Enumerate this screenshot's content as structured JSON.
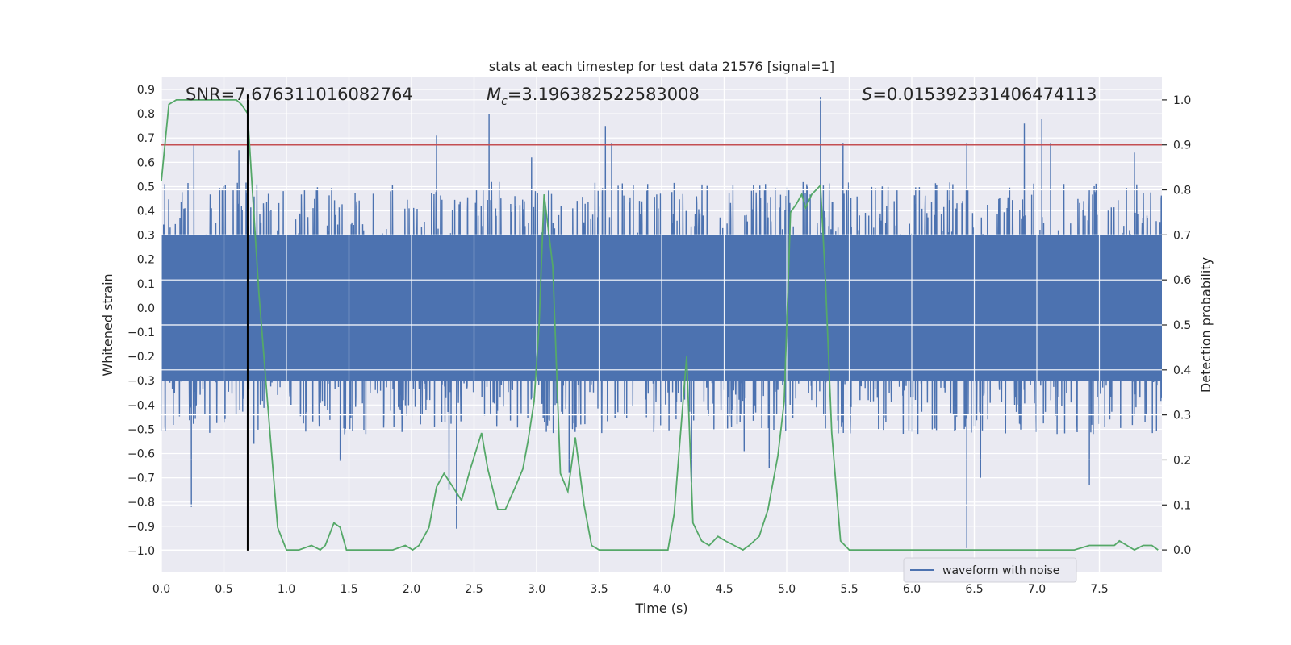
{
  "chart_data": {
    "type": "line",
    "title": "stats at each timestep for test data 21576 [signal=1]",
    "xlabel": "Time (s)",
    "ylabel": "Whitened strain",
    "y2label": "Detection probability",
    "xlim": [
      0.0,
      8.0
    ],
    "ylim": [
      -1.09,
      0.95
    ],
    "y2lim": [
      -0.05,
      1.05
    ],
    "xticks": [
      "0.0",
      "0.5",
      "1.0",
      "1.5",
      "2.0",
      "2.5",
      "3.0",
      "3.5",
      "4.0",
      "4.5",
      "5.0",
      "5.5",
      "6.0",
      "6.5",
      "7.0",
      "7.5"
    ],
    "yticks": [
      "−1.0",
      "−0.9",
      "−0.8",
      "−0.7",
      "−0.6",
      "−0.5",
      "−0.4",
      "−0.3",
      "−0.2",
      "−0.1",
      "0.0",
      "0.1",
      "0.2",
      "0.3",
      "0.4",
      "0.5",
      "0.6",
      "0.7",
      "0.8",
      "0.9"
    ],
    "y2ticks": [
      "0.0",
      "0.1",
      "0.2",
      "0.3",
      "0.4",
      "0.5",
      "0.6",
      "0.7",
      "0.8",
      "0.9",
      "1.0"
    ],
    "grid": true,
    "legend_position": "lower-right",
    "annotations": {
      "snr": "SNR=7.676311016082764",
      "mc_symbol": "M",
      "mc_sub": "c",
      "mc_value": "=3.196382522583008",
      "s_symbol": "S",
      "s_value": "=0.015392331406474113"
    },
    "series": [
      {
        "name": "waveform with noise",
        "color": "#4c72b0",
        "axis": "left",
        "kind": "noise",
        "points_per_second": 512,
        "envelope": 0.52,
        "core": 0.3,
        "spikes": [
          {
            "x": 0.24,
            "y": -0.82
          },
          {
            "x": 0.26,
            "y": 0.67
          },
          {
            "x": 0.62,
            "y": 0.65
          },
          {
            "x": 0.74,
            "y": -0.56
          },
          {
            "x": 1.43,
            "y": -0.63
          },
          {
            "x": 2.2,
            "y": 0.71
          },
          {
            "x": 2.3,
            "y": -0.75
          },
          {
            "x": 2.36,
            "y": -0.91
          },
          {
            "x": 2.62,
            "y": 0.8
          },
          {
            "x": 2.96,
            "y": 0.62
          },
          {
            "x": 3.26,
            "y": -0.68
          },
          {
            "x": 3.55,
            "y": 0.75
          },
          {
            "x": 3.6,
            "y": 0.68
          },
          {
            "x": 4.24,
            "y": -0.72
          },
          {
            "x": 4.66,
            "y": -0.59
          },
          {
            "x": 4.86,
            "y": -0.66
          },
          {
            "x": 5.27,
            "y": 0.87
          },
          {
            "x": 5.45,
            "y": 0.68
          },
          {
            "x": 6.44,
            "y": 0.68
          },
          {
            "x": 6.44,
            "y": -0.99
          },
          {
            "x": 6.55,
            "y": -0.7
          },
          {
            "x": 6.9,
            "y": 0.76
          },
          {
            "x": 7.04,
            "y": 0.78
          },
          {
            "x": 7.11,
            "y": 0.68
          },
          {
            "x": 7.42,
            "y": -0.73
          },
          {
            "x": 7.78,
            "y": 0.64
          }
        ]
      },
      {
        "name": "",
        "color": "#55a868",
        "axis": "right",
        "kind": "line",
        "x": [
          0.0,
          0.06,
          0.12,
          0.2,
          0.3,
          0.4,
          0.5,
          0.6,
          0.64,
          0.69,
          0.73,
          0.78,
          0.86,
          0.93,
          1.0,
          1.1,
          1.2,
          1.27,
          1.31,
          1.38,
          1.43,
          1.48,
          1.55,
          1.65,
          1.75,
          1.85,
          1.95,
          2.01,
          2.06,
          2.14,
          2.2,
          2.26,
          2.33,
          2.4,
          2.47,
          2.56,
          2.61,
          2.69,
          2.75,
          2.83,
          2.89,
          2.93,
          2.98,
          3.02,
          3.06,
          3.13,
          3.19,
          3.25,
          3.31,
          3.38,
          3.44,
          3.5,
          3.6,
          3.7,
          3.8,
          3.9,
          4.0,
          4.05,
          4.1,
          4.2,
          4.25,
          4.32,
          4.38,
          4.45,
          4.51,
          4.58,
          4.65,
          4.7,
          4.78,
          4.85,
          4.93,
          4.98,
          5.03,
          5.08,
          5.12,
          5.15,
          5.2,
          5.27,
          5.31,
          5.36,
          5.43,
          5.5,
          5.57,
          5.7,
          5.9,
          6.1,
          6.3,
          6.5,
          6.7,
          6.9,
          7.1,
          7.3,
          7.42,
          7.5,
          7.57,
          7.62,
          7.66,
          7.72,
          7.78,
          7.85,
          7.92,
          7.97
        ],
        "y": [
          0.82,
          0.99,
          1.0,
          1.0,
          1.0,
          1.0,
          1.0,
          1.0,
          0.99,
          0.97,
          0.79,
          0.57,
          0.29,
          0.05,
          0.0,
          0.0,
          0.01,
          0.0,
          0.01,
          0.06,
          0.05,
          0.0,
          0.0,
          0.0,
          0.0,
          0.0,
          0.01,
          0.0,
          0.01,
          0.05,
          0.14,
          0.17,
          0.14,
          0.11,
          0.18,
          0.26,
          0.18,
          0.09,
          0.09,
          0.14,
          0.18,
          0.24,
          0.33,
          0.5,
          0.79,
          0.63,
          0.17,
          0.13,
          0.25,
          0.1,
          0.01,
          0.0,
          0.0,
          0.0,
          0.0,
          0.0,
          0.0,
          0.0,
          0.08,
          0.43,
          0.06,
          0.02,
          0.01,
          0.03,
          0.02,
          0.01,
          0.0,
          0.01,
          0.03,
          0.09,
          0.21,
          0.33,
          0.75,
          0.77,
          0.79,
          0.76,
          0.79,
          0.81,
          0.6,
          0.26,
          0.02,
          0.0,
          0.0,
          0.0,
          0.0,
          0.0,
          0.0,
          0.0,
          0.0,
          0.0,
          0.0,
          0.0,
          0.01,
          0.01,
          0.01,
          0.01,
          0.02,
          0.01,
          0.0,
          0.01,
          0.01,
          0.0
        ]
      },
      {
        "name": "",
        "color": "#c44e52",
        "axis": "right",
        "kind": "hline",
        "y": 0.9
      },
      {
        "name": "",
        "color": "#000000",
        "axis": "left",
        "kind": "vline",
        "x": 0.69,
        "ymin": -1.0,
        "ymax": 0.88
      }
    ]
  }
}
